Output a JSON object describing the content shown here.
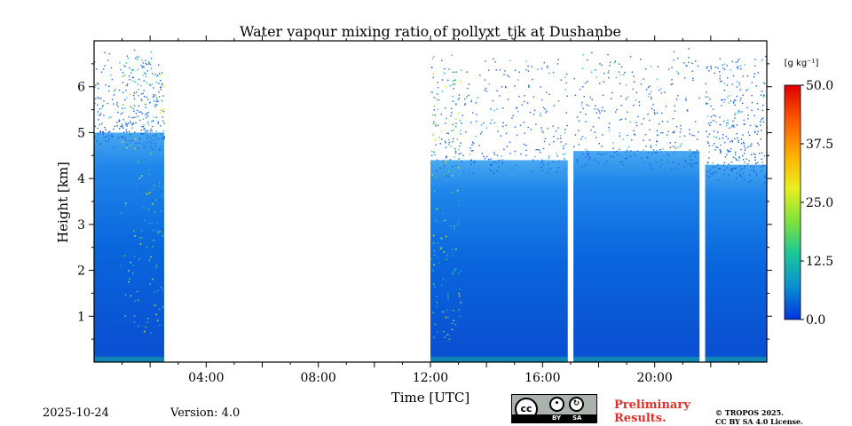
{
  "chart_data": {
    "type": "heatmap",
    "title": "Water vapour mixing ratio of pollyxt_tjk at Dushanbe",
    "xlabel": "Time [UTC]",
    "ylabel": "Height [km]",
    "xlim_hours": [
      0,
      24
    ],
    "ylim_km": [
      0,
      7
    ],
    "x_ticks": [
      {
        "hour": 4,
        "label": "04:00"
      },
      {
        "hour": 8,
        "label": "08:00"
      },
      {
        "hour": 12,
        "label": "12:00"
      },
      {
        "hour": 16,
        "label": "16:00"
      },
      {
        "hour": 20,
        "label": "20:00"
      }
    ],
    "y_ticks": [
      {
        "km": 1,
        "label": "1"
      },
      {
        "km": 2,
        "label": "2"
      },
      {
        "km": 3,
        "label": "3"
      },
      {
        "km": 4,
        "label": "4"
      },
      {
        "km": 5,
        "label": "5"
      },
      {
        "km": 6,
        "label": "6"
      }
    ],
    "colorbar": {
      "unit_label": "[g kg⁻¹]",
      "min": 0.0,
      "max": 50.0,
      "ticks": [
        "0.0",
        "12.5",
        "25.0",
        "37.5",
        "50.0"
      ],
      "tick_values": [
        0,
        12.5,
        25,
        37.5,
        50
      ],
      "colors": [
        "#0033dd",
        "#0a8fd0",
        "#19c79a",
        "#7ee23a",
        "#e9ef20",
        "#ffb000",
        "#ff5a00",
        "#dd0000"
      ]
    },
    "data_segments_hours": [
      [
        0.0,
        2.5
      ],
      [
        12.0,
        16.9
      ],
      [
        17.1,
        21.6
      ],
      [
        21.8,
        24.0
      ]
    ],
    "missing_segments_hours": [
      [
        2.5,
        12.0
      ]
    ],
    "layer_top_km": [
      5.0,
      4.4,
      4.6,
      4.3
    ],
    "typical_value_g_per_kg": 3,
    "background_color": "#ffffff"
  },
  "footer": {
    "date": "2025-10-24",
    "version": "Version: 4.0",
    "license_badge": {
      "cc": "cc",
      "by": "BY",
      "sa": "SA"
    },
    "preliminary_line1": "Preliminary",
    "preliminary_line2": "Results.",
    "copyright_line1": "© TROPOS 2025.",
    "copyright_line2": "CC BY SA 4.0 License."
  }
}
